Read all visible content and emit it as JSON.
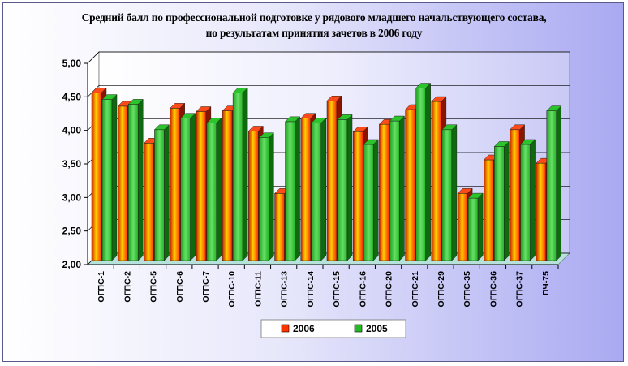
{
  "chart_data": {
    "type": "bar",
    "title_lines": [
      "Средний балл по профессиональной подготовке у рядового  младшего начальствующего состава,",
      "по результатам принятия зачетов в 2006 году"
    ],
    "categories": [
      "ОГПС-1",
      "ОГПС-2",
      "ОГПС-5",
      "ОГПС-6",
      "ОГПС-7",
      "ОГПС-10",
      "ОГПС-11",
      "ОГПС-13",
      "ОГПС-14",
      "ОГПС-15",
      "ОГПС-16",
      "ОГПС-20",
      "ОГПС-21",
      "ОГПС-29",
      "ОГПС-35",
      "ОГПС-36",
      "ОГПС-37",
      "ПЧ-75"
    ],
    "series": [
      {
        "name": "2006",
        "color": "#ff3300",
        "values": [
          4.5,
          4.3,
          3.75,
          4.27,
          4.22,
          4.23,
          3.93,
          3.0,
          4.12,
          4.38,
          3.92,
          4.03,
          4.25,
          4.37,
          3.0,
          3.5,
          3.95,
          3.45
        ]
      },
      {
        "name": "2005",
        "color": "#22bb22",
        "values": [
          4.4,
          4.33,
          3.95,
          4.12,
          4.05,
          4.5,
          3.83,
          4.07,
          4.05,
          4.1,
          3.73,
          4.08,
          4.57,
          3.95,
          2.93,
          3.7,
          3.73,
          4.23
        ]
      }
    ],
    "y_ticks": [
      "5,00",
      "4,50",
      "4,00",
      "3,50",
      "3,00",
      "2,50",
      "2,00"
    ],
    "ylim": [
      2.0,
      5.0
    ],
    "grid": true,
    "legend_position": "bottom"
  }
}
